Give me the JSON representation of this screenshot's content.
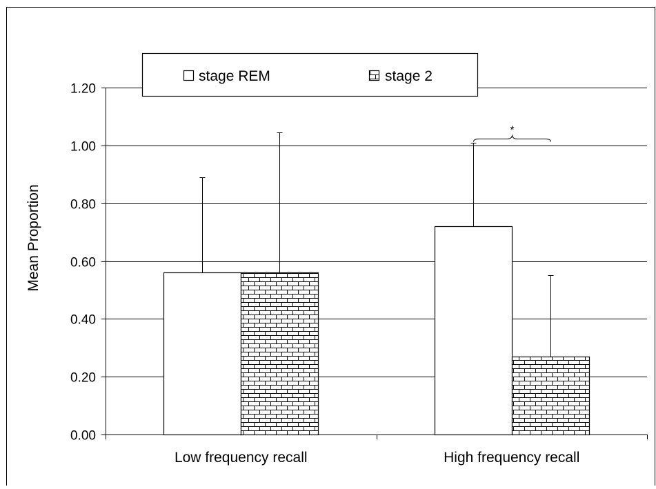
{
  "chart_data": {
    "type": "bar",
    "categories": [
      "Low frequency recall",
      "High frequency recall"
    ],
    "series": [
      {
        "name": "stage REM",
        "values": [
          0.56,
          0.72
        ],
        "error": [
          0.33,
          0.29
        ],
        "pattern": "none"
      },
      {
        "name": "stage 2",
        "values": [
          0.56,
          0.27
        ],
        "error": [
          0.485,
          0.28
        ],
        "pattern": "brick"
      }
    ],
    "ylabel": "Mean Proportion",
    "ylim": [
      0,
      1.2
    ],
    "yticks": [
      "0.00",
      "0.20",
      "0.40",
      "0.60",
      "0.80",
      "1.00",
      "1.20"
    ],
    "grid": true,
    "legend_position": "top",
    "annotations": [
      {
        "text": "*",
        "category": "High frequency recall",
        "spans": "both series"
      }
    ],
    "colors": {
      "bar_fill": "#ffffff",
      "stroke": "#000000",
      "background": "#ffffff"
    }
  }
}
